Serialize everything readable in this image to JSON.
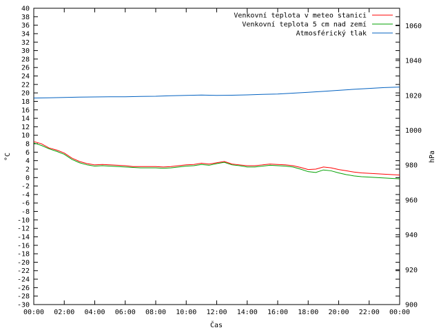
{
  "chart_data": {
    "type": "line",
    "title": "",
    "xlabel": "Čas",
    "ylabel": "°C",
    "y2label": "hPa",
    "xlim": [
      "00:00",
      "24:00"
    ],
    "xticks": [
      "00:00",
      "02:00",
      "04:00",
      "06:00",
      "08:00",
      "10:00",
      "12:00",
      "14:00",
      "16:00",
      "18:00",
      "20:00",
      "22:00",
      "00:00"
    ],
    "ylim": [
      -30,
      40
    ],
    "ytick_step": 2,
    "y2lim": [
      900,
      1070
    ],
    "y2ticks": [
      900,
      920,
      940,
      960,
      980,
      1000,
      1020,
      1040,
      1060
    ],
    "legend_position": "top-right",
    "grid": false,
    "series": [
      {
        "name": "Venkovní teplota v meteo stanici",
        "axis": "left",
        "color": "#ff0000",
        "x": [
          0,
          0.5,
          1,
          1.5,
          2,
          2.5,
          3,
          3.5,
          4,
          4.5,
          5,
          5.5,
          6,
          6.5,
          7,
          7.5,
          8,
          8.5,
          9,
          9.5,
          10,
          10.5,
          11,
          11.5,
          12,
          12.5,
          13,
          13.5,
          14,
          14.5,
          15,
          15.5,
          16,
          16.5,
          17,
          17.5,
          18,
          18.5,
          19,
          19.5,
          20,
          20.5,
          21,
          21.5,
          22,
          22.5,
          23,
          23.5,
          24
        ],
        "values": [
          8.5,
          8.0,
          7.0,
          6.5,
          5.8,
          4.6,
          3.8,
          3.3,
          3.0,
          3.1,
          3.0,
          2.9,
          2.8,
          2.6,
          2.6,
          2.6,
          2.6,
          2.5,
          2.6,
          2.8,
          3.0,
          3.1,
          3.4,
          3.2,
          3.5,
          3.8,
          3.2,
          3.0,
          2.8,
          2.8,
          3.0,
          3.2,
          3.1,
          3.0,
          2.8,
          2.4,
          1.9,
          2.0,
          2.5,
          2.3,
          1.9,
          1.6,
          1.3,
          1.1,
          1.0,
          0.9,
          0.8,
          0.7,
          0.6
        ]
      },
      {
        "name": "Venkovní teplota 5 cm nad zemí",
        "axis": "left",
        "color": "#00a000",
        "x": [
          0,
          0.5,
          1,
          1.5,
          2,
          2.5,
          3,
          3.5,
          4,
          4.5,
          5,
          5.5,
          6,
          6.5,
          7,
          7.5,
          8,
          8.5,
          9,
          9.5,
          10,
          10.5,
          11,
          11.5,
          12,
          12.5,
          13,
          13.5,
          14,
          14.5,
          15,
          15.5,
          16,
          16.5,
          17,
          17.5,
          18,
          18.5,
          19,
          19.5,
          20,
          20.5,
          21,
          21.5,
          22,
          22.5,
          23,
          23.5,
          24
        ],
        "values": [
          8.2,
          7.6,
          6.8,
          6.2,
          5.5,
          4.3,
          3.5,
          3.0,
          2.7,
          2.8,
          2.7,
          2.6,
          2.5,
          2.4,
          2.3,
          2.3,
          2.3,
          2.2,
          2.3,
          2.5,
          2.7,
          2.8,
          3.1,
          2.9,
          3.3,
          3.6,
          3.0,
          2.8,
          2.5,
          2.5,
          2.7,
          2.9,
          2.8,
          2.7,
          2.5,
          2.0,
          1.4,
          1.2,
          1.8,
          1.6,
          1.1,
          0.7,
          0.4,
          0.2,
          0.1,
          0.0,
          -0.1,
          -0.2,
          -0.3
        ]
      },
      {
        "name": "Atmosférický tlak",
        "axis": "right",
        "color": "#0060c0",
        "x": [
          0,
          1,
          2,
          3,
          4,
          5,
          6,
          7,
          8,
          9,
          10,
          11,
          12,
          13,
          14,
          15,
          16,
          17,
          18,
          19,
          20,
          21,
          22,
          23,
          24
        ],
        "values": [
          1018.5,
          1018.6,
          1018.8,
          1019.0,
          1019.1,
          1019.2,
          1019.2,
          1019.4,
          1019.5,
          1019.8,
          1020.0,
          1020.2,
          1020.0,
          1020.1,
          1020.3,
          1020.6,
          1020.8,
          1021.3,
          1021.8,
          1022.3,
          1022.9,
          1023.5,
          1024.0,
          1024.5,
          1024.8
        ]
      }
    ]
  }
}
